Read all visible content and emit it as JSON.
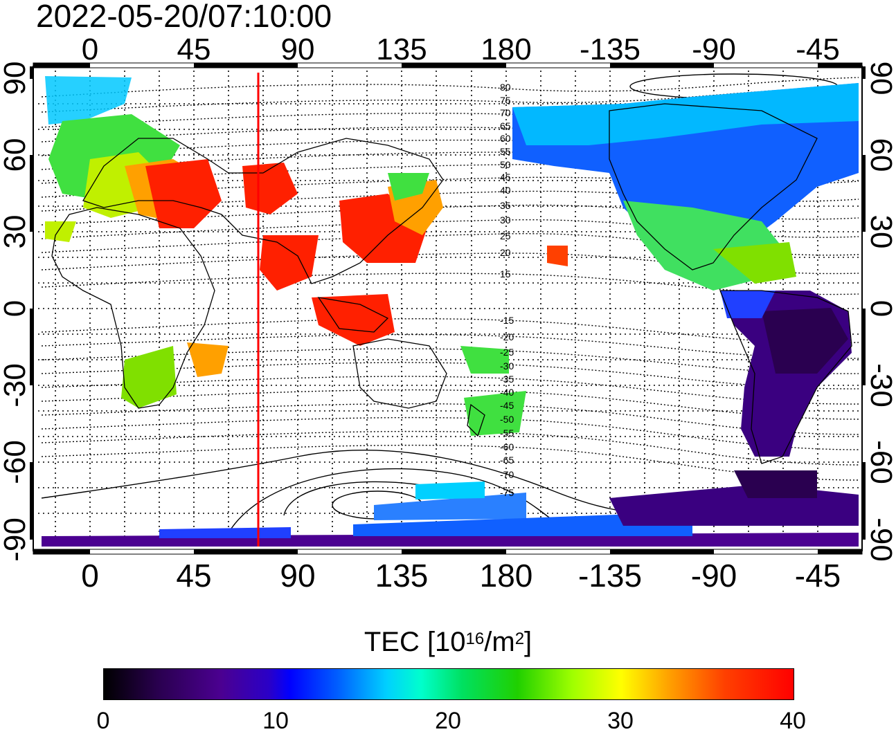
{
  "timestamp": "2022-05-20/07:10:00",
  "longitude_ticks": [
    "0",
    "45",
    "90",
    "135",
    "180",
    "-135",
    "-90",
    "-45"
  ],
  "latitude_ticks": [
    "90",
    "60",
    "30",
    "0",
    "-30",
    "-60",
    "-90"
  ],
  "geomag_north": [
    "80",
    "75",
    "70",
    "65",
    "60",
    "55",
    "50",
    "45",
    "40",
    "35",
    "30",
    "25",
    "20",
    "15"
  ],
  "geomag_south": [
    "-15",
    "-20",
    "-25",
    "-30",
    "-35",
    "-40",
    "-45",
    "-50",
    "-55",
    "-60",
    "-65",
    "-70",
    "-75"
  ],
  "colorbar": {
    "title_prefix": "TEC  [10",
    "exp1": "16",
    "title_mid": "/m",
    "exp2": "2",
    "title_suffix": "]",
    "ticks": [
      "0",
      "10",
      "20",
      "30",
      "40"
    ]
  },
  "colors": {
    "sun_line": "#ff0000",
    "grid": "#000000"
  }
}
